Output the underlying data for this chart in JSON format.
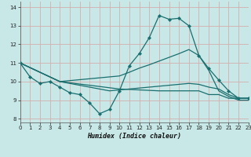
{
  "xlabel": "Humidex (Indice chaleur)",
  "bg_color": "#c8e8e8",
  "line_color": "#1a6e6e",
  "xlim": [
    0,
    23
  ],
  "ylim": [
    7.8,
    14.3
  ],
  "xticks": [
    0,
    1,
    2,
    3,
    4,
    5,
    6,
    7,
    8,
    9,
    10,
    11,
    12,
    13,
    14,
    15,
    16,
    17,
    18,
    19,
    20,
    21,
    22,
    23
  ],
  "yticks": [
    8,
    9,
    10,
    11,
    12,
    13,
    14
  ],
  "lines": [
    {
      "x": [
        0,
        1,
        2,
        3,
        4,
        5,
        6,
        7,
        8,
        9,
        10,
        11,
        12,
        13,
        14,
        15,
        16,
        17,
        18,
        19,
        20,
        21,
        22,
        23
      ],
      "y": [
        11.0,
        10.25,
        9.9,
        10.0,
        9.7,
        9.4,
        9.3,
        8.85,
        8.27,
        8.5,
        9.5,
        10.85,
        11.5,
        12.35,
        13.55,
        13.35,
        13.4,
        13.0,
        11.4,
        10.7,
        10.08,
        9.5,
        9.1,
        9.1
      ],
      "markers": true
    },
    {
      "x": [
        0,
        4,
        10,
        11,
        12,
        13,
        14,
        15,
        16,
        17,
        18,
        19,
        20,
        21,
        22,
        23
      ],
      "y": [
        11.0,
        10.0,
        10.3,
        10.5,
        10.72,
        10.9,
        11.1,
        11.3,
        11.5,
        11.72,
        11.4,
        10.6,
        9.5,
        9.2,
        9.0,
        9.0
      ],
      "markers": false
    },
    {
      "x": [
        0,
        4,
        10,
        14,
        15,
        16,
        17,
        18,
        19,
        20,
        21,
        22,
        23
      ],
      "y": [
        11.0,
        10.0,
        9.6,
        9.5,
        9.5,
        9.5,
        9.5,
        9.5,
        9.3,
        9.3,
        9.1,
        9.1,
        9.1
      ],
      "markers": false
    },
    {
      "x": [
        0,
        4,
        9,
        10,
        11,
        12,
        13,
        14,
        15,
        16,
        17,
        18,
        19,
        20,
        21,
        22,
        23
      ],
      "y": [
        11.0,
        10.0,
        9.5,
        9.55,
        9.6,
        9.65,
        9.7,
        9.75,
        9.8,
        9.85,
        9.9,
        9.85,
        9.7,
        9.6,
        9.3,
        9.1,
        9.1
      ],
      "markers": false
    }
  ]
}
